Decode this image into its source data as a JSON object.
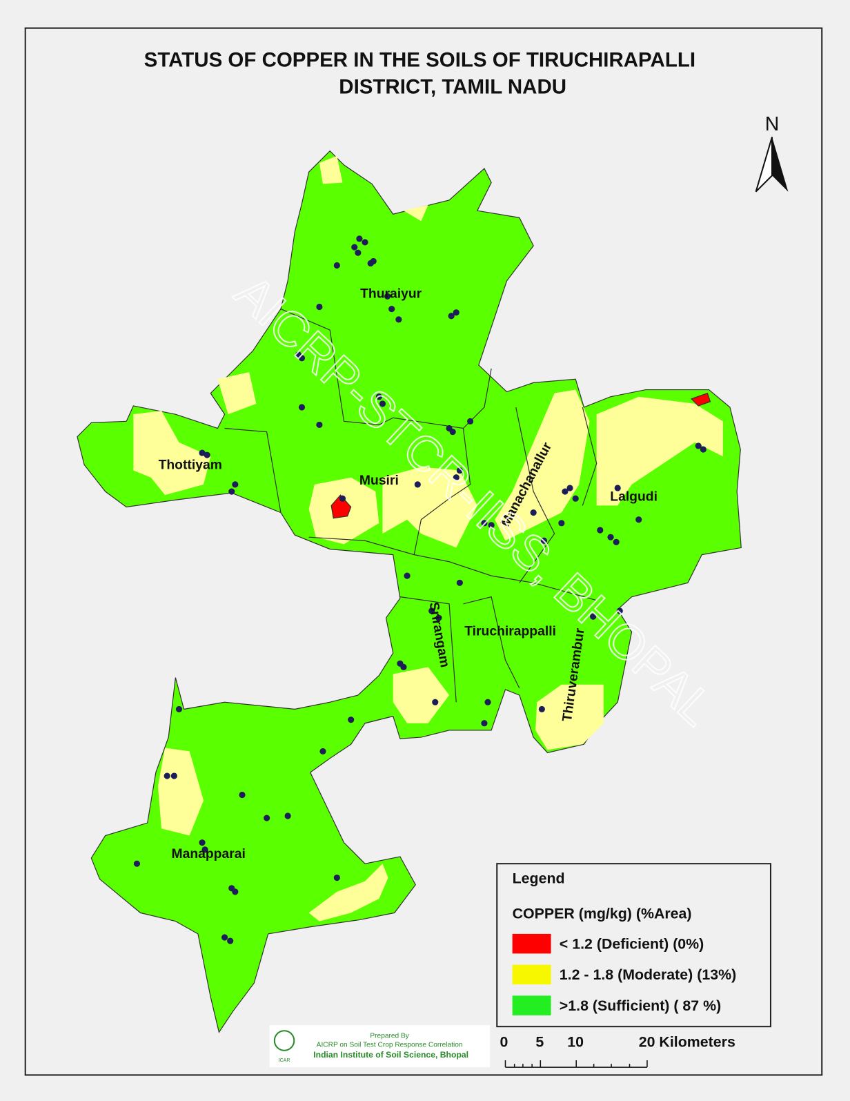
{
  "title": [
    "STATUS OF COPPER IN THE SOILS OF TIRUCHIRAPALLI",
    "DISTRICT, TAMIL NADU"
  ],
  "north": "N",
  "blocks": [
    "Thuraiyur",
    "Thottiyam",
    "Musiri",
    "Manachanallur",
    "Lalgudi",
    "Srirangam",
    "Tiruchirappalli",
    "Thiruverambur",
    "Manapparai"
  ],
  "watermark": "AICRP-STCR-IISS, BHOPAL",
  "legend": {
    "title": "Legend",
    "heading": "COPPER  (mg/kg) (%Area)",
    "items": [
      {
        "label": "< 1.2  (Deficient) (0%)",
        "color": "#ff0000"
      },
      {
        "label": "1.2 - 1.8  (Moderate) (13%)",
        "color": "#f7f700"
      },
      {
        "label": ">1.8   (Sufficient) ( 87 %)",
        "color": "#22ee22"
      }
    ]
  },
  "credit": {
    "line1": "Prepared By",
    "line2": "AICRP on Soil Test Crop Response Correlation",
    "line3": "Indian Institute of Soil Science, Bhopal",
    "logo": "ICAR"
  },
  "scale": {
    "labels": [
      "0",
      "5",
      "10",
      "20 Kilometers"
    ]
  }
}
